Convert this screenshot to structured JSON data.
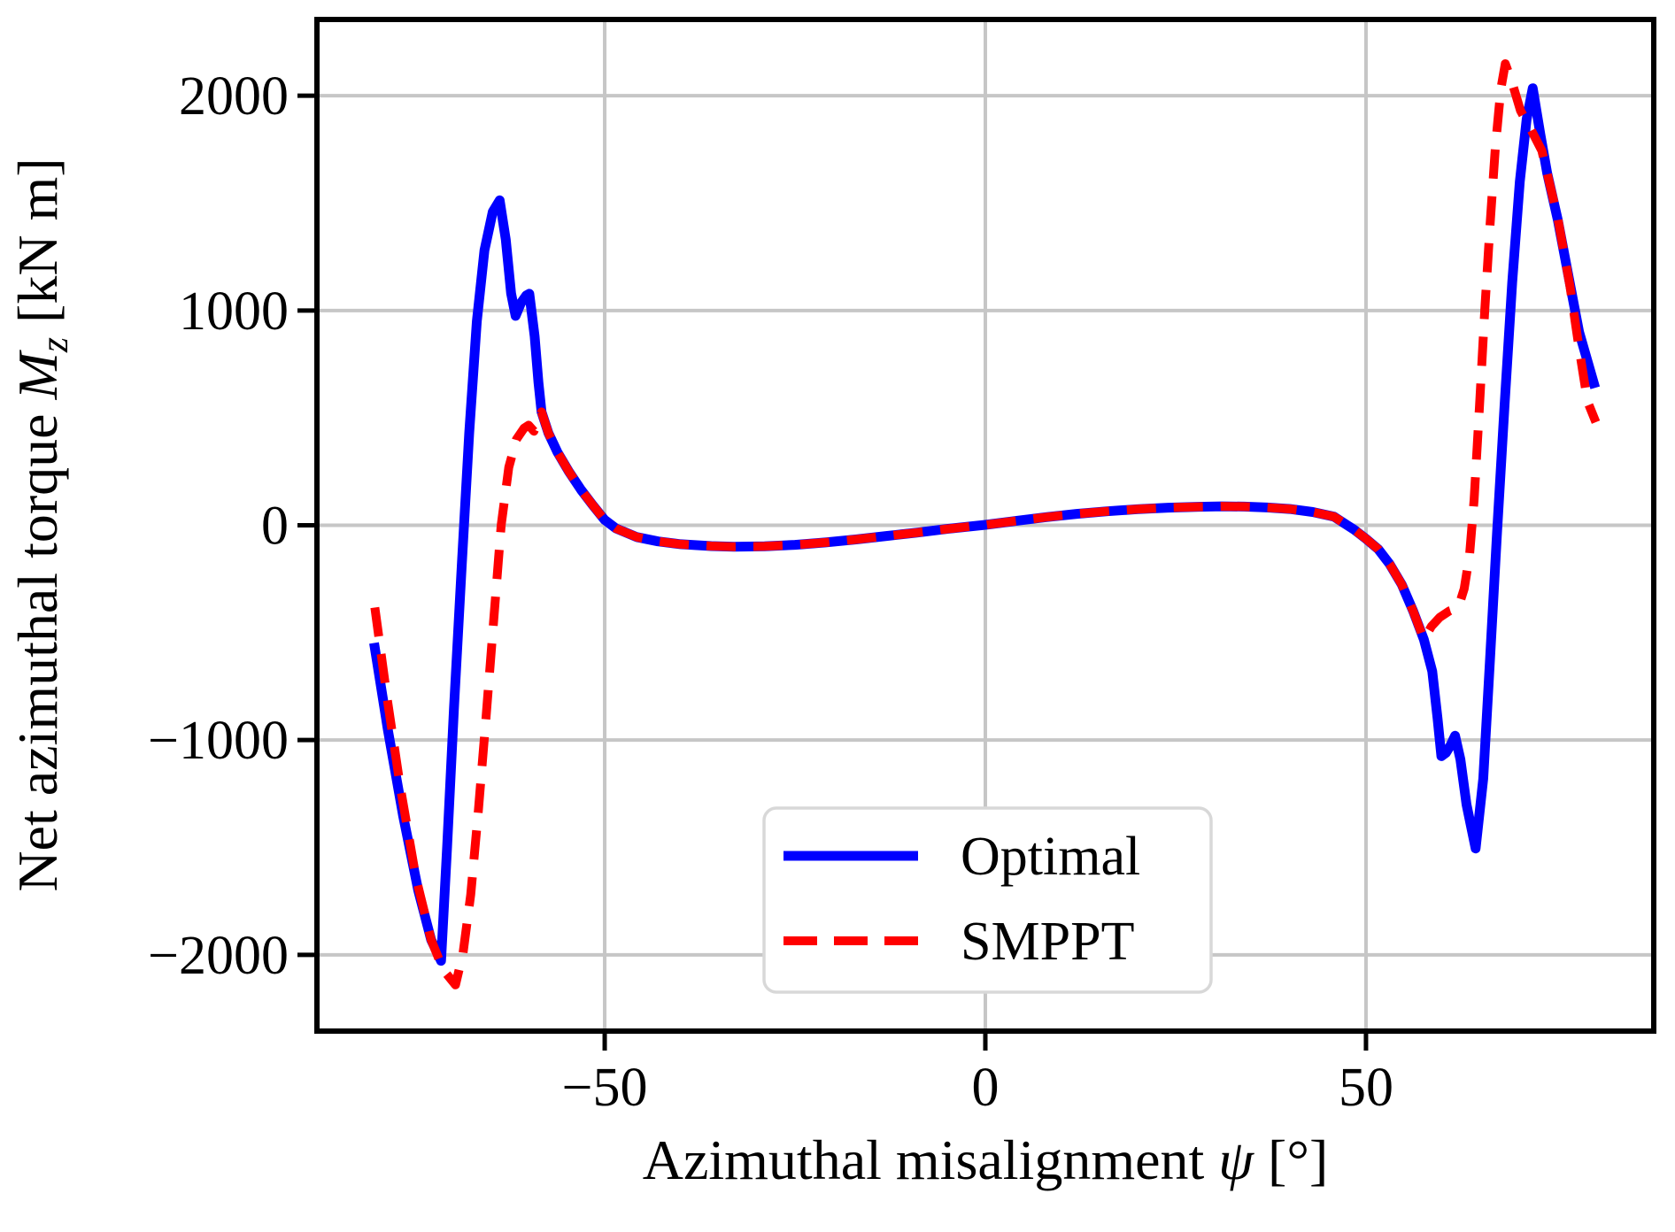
{
  "figure": {
    "background": "#ffffff",
    "frame_color": "#000000",
    "grid_color": "#c6c6c6"
  },
  "chart_data": {
    "type": "line",
    "title": "",
    "xlabel": "Azimuthal misalignment ψ [°]",
    "ylabel": "Net azimuthal torque Mz [kN m]",
    "xlabel_parts": {
      "prefix": "Azimuthal misalignment ",
      "symbol": "ψ",
      "suffix": " [°]"
    },
    "ylabel_parts": {
      "prefix": "Net azimuthal torque ",
      "symbol": "M",
      "subscript": "z",
      "suffix": " [kN m]"
    },
    "xlim": [
      -87.8,
      87.8
    ],
    "ylim": [
      -2355,
      2355
    ],
    "grid": true,
    "grid_color": "#c6c6c6",
    "xticks": [
      {
        "value": -50,
        "label": "−50"
      },
      {
        "value": 0,
        "label": "0"
      },
      {
        "value": 50,
        "label": "50"
      }
    ],
    "yticks": [
      {
        "value": 2000,
        "label": "2000"
      },
      {
        "value": 1000,
        "label": "1000"
      },
      {
        "value": 0,
        "label": "0"
      },
      {
        "value": -1000,
        "label": "−1000"
      },
      {
        "value": -2000,
        "label": "−2000"
      }
    ],
    "legend": {
      "position": "lower center",
      "entries": [
        {
          "label": "Optimal",
          "series": 0
        },
        {
          "label": "SMPPT",
          "series": 1
        }
      ]
    },
    "series": [
      {
        "name": "Optimal",
        "color": "#0000ff",
        "style": "solid",
        "width": 11,
        "points": [
          [
            -80.3,
            -548
          ],
          [
            -78.5,
            -950
          ],
          [
            -76.5,
            -1350
          ],
          [
            -74.5,
            -1700
          ],
          [
            -72.8,
            -1930
          ],
          [
            -71.5,
            -2028
          ],
          [
            -70.7,
            -1500
          ],
          [
            -69.8,
            -850
          ],
          [
            -68.8,
            -200
          ],
          [
            -67.8,
            430
          ],
          [
            -66.8,
            950
          ],
          [
            -65.8,
            1280
          ],
          [
            -64.7,
            1460
          ],
          [
            -63.8,
            1513
          ],
          [
            -63.0,
            1330
          ],
          [
            -62.3,
            1080
          ],
          [
            -61.7,
            975
          ],
          [
            -61.0,
            1035
          ],
          [
            -60.3,
            1070
          ],
          [
            -59.9,
            1078
          ],
          [
            -59.2,
            880
          ],
          [
            -58.7,
            665
          ],
          [
            -58.3,
            528
          ],
          [
            -57.4,
            430
          ],
          [
            -56.2,
            340
          ],
          [
            -54.7,
            250
          ],
          [
            -53.1,
            165
          ],
          [
            -51.6,
            95
          ],
          [
            -50.0,
            25
          ],
          [
            -48.5,
            -15
          ],
          [
            -45.8,
            -55
          ],
          [
            -43,
            -75
          ],
          [
            -40,
            -88
          ],
          [
            -36,
            -97
          ],
          [
            -33,
            -100
          ],
          [
            -29,
            -98
          ],
          [
            -25,
            -91
          ],
          [
            -21,
            -80
          ],
          [
            -17,
            -66
          ],
          [
            -13,
            -50
          ],
          [
            -9,
            -34
          ],
          [
            -5,
            -17
          ],
          [
            0,
            2
          ],
          [
            4,
            20
          ],
          [
            8,
            38
          ],
          [
            12,
            53
          ],
          [
            16,
            65
          ],
          [
            20,
            75
          ],
          [
            24,
            82
          ],
          [
            28,
            86
          ],
          [
            31,
            88
          ],
          [
            34,
            87
          ],
          [
            37,
            83
          ],
          [
            40,
            76
          ],
          [
            43,
            62
          ],
          [
            45.8,
            40
          ],
          [
            48.5,
            -22
          ],
          [
            50,
            -63
          ],
          [
            51.6,
            -111
          ],
          [
            53.1,
            -180
          ],
          [
            54.7,
            -276
          ],
          [
            56.2,
            -400
          ],
          [
            57.6,
            -531
          ],
          [
            58.7,
            -680
          ],
          [
            59.4,
            -900
          ],
          [
            59.9,
            -1075
          ],
          [
            60.5,
            -1060
          ],
          [
            61.1,
            -1025
          ],
          [
            61.7,
            -980
          ],
          [
            62.4,
            -1090
          ],
          [
            63.2,
            -1300
          ],
          [
            64.4,
            -1505
          ],
          [
            65.4,
            -1180
          ],
          [
            66.3,
            -620
          ],
          [
            67.2,
            -40
          ],
          [
            68.2,
            560
          ],
          [
            69.2,
            1130
          ],
          [
            70.2,
            1600
          ],
          [
            71.1,
            1890
          ],
          [
            71.9,
            2035
          ],
          [
            72.9,
            1820
          ],
          [
            73.8,
            1640
          ],
          [
            75.2,
            1420
          ],
          [
            76.6,
            1160
          ],
          [
            78.0,
            900
          ],
          [
            80.1,
            640
          ]
        ]
      },
      {
        "name": "SMPPT",
        "color": "#ff0000",
        "style": "dashed",
        "width": 10,
        "points": [
          [
            -80.2,
            -383
          ],
          [
            -78.6,
            -800
          ],
          [
            -76.8,
            -1230
          ],
          [
            -74.8,
            -1640
          ],
          [
            -72.8,
            -1930
          ],
          [
            -71.2,
            -2070
          ],
          [
            -69.6,
            -2140
          ],
          [
            -68.6,
            -1990
          ],
          [
            -67.6,
            -1720
          ],
          [
            -66.6,
            -1330
          ],
          [
            -65.6,
            -900
          ],
          [
            -64.6,
            -450
          ],
          [
            -63.6,
            0
          ],
          [
            -62.6,
            270
          ],
          [
            -61.6,
            400
          ],
          [
            -60.6,
            452
          ],
          [
            -60.0,
            466
          ],
          [
            -59.3,
            438
          ],
          [
            -58.7,
            488
          ],
          [
            -58.3,
            528
          ],
          [
            -57.4,
            430
          ],
          [
            -56.2,
            340
          ],
          [
            -54.7,
            250
          ],
          [
            -53.1,
            165
          ],
          [
            -51.6,
            95
          ],
          [
            -50.0,
            25
          ],
          [
            -48.5,
            -15
          ],
          [
            -45.8,
            -55
          ],
          [
            -43,
            -75
          ],
          [
            -40,
            -88
          ],
          [
            -36,
            -97
          ],
          [
            -33,
            -100
          ],
          [
            -29,
            -98
          ],
          [
            -25,
            -91
          ],
          [
            -21,
            -80
          ],
          [
            -17,
            -66
          ],
          [
            -13,
            -50
          ],
          [
            -9,
            -34
          ],
          [
            -5,
            -17
          ],
          [
            0,
            2
          ],
          [
            4,
            20
          ],
          [
            8,
            38
          ],
          [
            12,
            53
          ],
          [
            16,
            65
          ],
          [
            20,
            75
          ],
          [
            24,
            82
          ],
          [
            28,
            86
          ],
          [
            31,
            88
          ],
          [
            34,
            87
          ],
          [
            37,
            83
          ],
          [
            40,
            76
          ],
          [
            43,
            62
          ],
          [
            45.8,
            40
          ],
          [
            48.5,
            -22
          ],
          [
            50,
            -63
          ],
          [
            51.6,
            -111
          ],
          [
            53.1,
            -180
          ],
          [
            54.7,
            -276
          ],
          [
            56.2,
            -400
          ],
          [
            57.6,
            -531
          ],
          [
            58.6,
            -470
          ],
          [
            59.7,
            -428
          ],
          [
            61.0,
            -398
          ],
          [
            62.1,
            -386
          ],
          [
            62.9,
            -295
          ],
          [
            63.6,
            -140
          ],
          [
            64.2,
            120
          ],
          [
            64.9,
            550
          ],
          [
            65.6,
            1000
          ],
          [
            66.3,
            1400
          ],
          [
            67.0,
            1760
          ],
          [
            67.7,
            2030
          ],
          [
            68.3,
            2149
          ],
          [
            69.2,
            2060
          ],
          [
            70.3,
            1930
          ],
          [
            71.7,
            1840
          ],
          [
            73.1,
            1744
          ],
          [
            75.2,
            1428
          ],
          [
            76.8,
            1112
          ],
          [
            78.0,
            823
          ],
          [
            79.1,
            576
          ],
          [
            80.2,
            480
          ]
        ]
      }
    ]
  }
}
